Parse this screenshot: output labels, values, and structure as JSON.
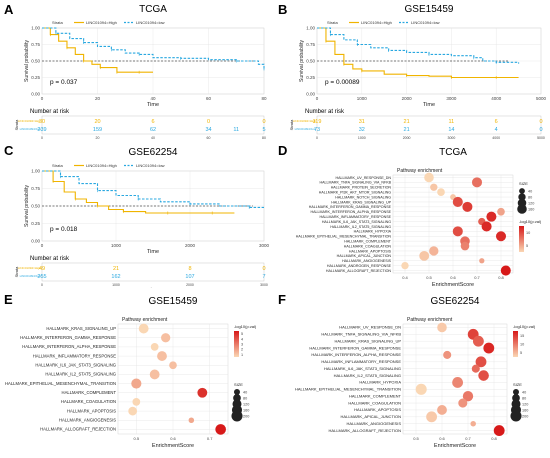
{
  "colors": {
    "high": "#f0b400",
    "low": "#29a8e0",
    "grid": "#e3e3e3",
    "axis": "#555555",
    "text": "#222222"
  },
  "panels": {
    "A": {
      "letter": "A",
      "title": "TCGA",
      "strata_label": "Strata",
      "legend_high": "LINC01094=High",
      "legend_low": "LINC01094=low",
      "ylabel": "Survival probability",
      "xlabel": "Time",
      "pvalue": "p = 0.037",
      "y_ticks": [
        "1.00",
        "0.75",
        "0.50",
        "0.25",
        "0.00"
      ],
      "x_ticks": [
        "0",
        "20",
        "40",
        "60",
        "80"
      ],
      "risk_title": "Number at risk",
      "risk_row_high": "LINC01094=High",
      "risk_row_low": "LINC01094=low",
      "risk_high": [
        "30",
        "20",
        "6",
        "0",
        "0"
      ],
      "risk_low": [
        "239",
        "159",
        "62",
        "34",
        "5"
      ],
      "risk_low_extra": [
        "11"
      ],
      "risk_xlabel": "Time"
    },
    "B": {
      "letter": "B",
      "title": "GSE15459",
      "strata_label": "Strata",
      "legend_high": "LINC01094=High",
      "legend_low": "LINC01094=low",
      "ylabel": "Survival probability",
      "xlabel": "Time",
      "pvalue": "p = 0.00089",
      "y_ticks": [
        "1.00",
        "0.75",
        "0.50",
        "0.25",
        "0.00"
      ],
      "x_ticks": [
        "0",
        "1000",
        "2000",
        "3000",
        "4000",
        "5000"
      ],
      "risk_title": "Number at risk",
      "risk_row_high": "LINC01094=High",
      "risk_row_low": "LINC01094=low",
      "risk_high": [
        "119",
        "31",
        "21",
        "11",
        "6",
        "0"
      ],
      "risk_low": [
        "73",
        "32",
        "21",
        "14",
        "4",
        "0"
      ],
      "risk_xlabel": "Time"
    },
    "C": {
      "letter": "C",
      "title": "GSE62254",
      "strata_label": "Strata",
      "legend_high": "LINC01094=High",
      "legend_low": "LINC01094=low",
      "ylabel": "Survival probability",
      "xlabel": "Time",
      "pvalue": "p = 0.018",
      "y_ticks": [
        "1.00",
        "0.75",
        "0.50",
        "0.25",
        "0.00"
      ],
      "x_ticks": [
        "0",
        "1000",
        "2000",
        "3000"
      ],
      "risk_title": "Number at risk",
      "risk_row_high": "LINC01094=High",
      "risk_row_low": "LINC01094=low",
      "risk_high": [
        "49",
        "21",
        "8",
        "0"
      ],
      "risk_low": [
        "255",
        "162",
        "107",
        "7"
      ],
      "risk_xlabel": "Time"
    },
    "D": {
      "letter": "D",
      "title": "TCGA",
      "subtitle": "Pathway enrichment",
      "xlabel": "EnrichmentScore",
      "x_ticks": [
        "0.4",
        "0.5",
        "0.6",
        "0.7",
        "0.8"
      ],
      "size_title": "SIZE",
      "size_values": [
        "40",
        "80",
        "120",
        "160"
      ],
      "color_title": "-log10(p.val)",
      "color_values": [
        "5",
        "10"
      ]
    },
    "E": {
      "letter": "E",
      "title": "GSE15459",
      "subtitle": "Pathway enrichment",
      "xlabel": "EnrichmentScore",
      "x_ticks": [
        "0.5",
        "0.6",
        "0.7"
      ],
      "size_title": "SIZE",
      "size_values": [
        "40",
        "80",
        "120",
        "160",
        "200"
      ],
      "color_title": "-log10(p.val)",
      "color_values": [
        "1",
        "2",
        "3",
        "4",
        "5"
      ]
    },
    "F": {
      "letter": "F",
      "title": "GSE62254",
      "subtitle": "Pathway enrichment",
      "xlabel": "EnrichmentScore",
      "x_ticks": [
        "0.5",
        "0.6",
        "0.7",
        "0.8"
      ],
      "size_title": "SIZE",
      "size_values": [
        "40",
        "80",
        "120",
        "160",
        "200"
      ],
      "color_title": "-log10(p.val)",
      "color_values": [
        "5",
        "10",
        "15"
      ]
    }
  },
  "chart_data": [
    {
      "panel": "A",
      "type": "line",
      "title": "TCGA",
      "xlabel": "Time",
      "ylabel": "Survival probability",
      "xlim": [
        0,
        80
      ],
      "ylim": [
        0,
        1
      ],
      "series": [
        {
          "name": "LINC01094=High",
          "x": [
            0,
            3,
            6,
            9,
            12,
            15,
            18,
            21,
            24,
            27,
            30,
            35,
            40
          ],
          "y": [
            1.0,
            0.9,
            0.8,
            0.7,
            0.6,
            0.5,
            0.45,
            0.4,
            0.4,
            0.33,
            0.33,
            0.33,
            0.33
          ]
        },
        {
          "name": "LINC01094=low",
          "x": [
            0,
            5,
            10,
            15,
            20,
            25,
            30,
            35,
            40,
            50,
            60,
            70,
            78,
            80
          ],
          "y": [
            1.0,
            0.92,
            0.84,
            0.78,
            0.72,
            0.67,
            0.62,
            0.6,
            0.55,
            0.54,
            0.52,
            0.5,
            0.45,
            0.38
          ]
        }
      ]
    },
    {
      "panel": "B",
      "type": "line",
      "title": "GSE15459",
      "xlabel": "Time",
      "ylabel": "Survival probability",
      "xlim": [
        0,
        5000
      ],
      "ylim": [
        0,
        1
      ],
      "series": [
        {
          "name": "LINC01094=High",
          "x": [
            0,
            200,
            400,
            600,
            800,
            1000,
            1500,
            2000,
            2500,
            3000,
            3500,
            4000,
            4500
          ],
          "y": [
            1.0,
            0.8,
            0.6,
            0.45,
            0.38,
            0.35,
            0.3,
            0.28,
            0.27,
            0.25,
            0.25,
            0.25,
            0.25
          ]
        },
        {
          "name": "LINC01094=low",
          "x": [
            0,
            300,
            600,
            900,
            1200,
            1600,
            2000,
            2500,
            3000,
            3500,
            3700,
            4000,
            4500
          ],
          "y": [
            1.0,
            0.9,
            0.82,
            0.75,
            0.7,
            0.66,
            0.63,
            0.6,
            0.58,
            0.55,
            0.5,
            0.48,
            0.46
          ]
        }
      ]
    },
    {
      "panel": "C",
      "type": "line",
      "title": "GSE62254",
      "xlabel": "Time",
      "ylabel": "Survival probability",
      "xlim": [
        0,
        3000
      ],
      "ylim": [
        0,
        1
      ],
      "series": [
        {
          "name": "LINC01094=High",
          "x": [
            0,
            150,
            300,
            450,
            600,
            750,
            900,
            1100,
            1400,
            1700,
            2000,
            2300,
            2600
          ],
          "y": [
            1.0,
            0.85,
            0.7,
            0.6,
            0.55,
            0.5,
            0.45,
            0.42,
            0.4,
            0.4,
            0.4,
            0.4,
            0.4
          ]
        },
        {
          "name": "LINC01094=low",
          "x": [
            0,
            250,
            500,
            750,
            1000,
            1300,
            1600,
            2000,
            2400,
            2800,
            3000
          ],
          "y": [
            1.0,
            0.92,
            0.82,
            0.72,
            0.65,
            0.6,
            0.56,
            0.53,
            0.5,
            0.48,
            0.48
          ]
        }
      ]
    },
    {
      "panel": "D",
      "type": "scatter",
      "title": "TCGA",
      "xlabel": "EnrichmentScore",
      "xlim": [
        0.35,
        0.85
      ],
      "categories": [
        "HALLMARK_UV_RESPONSE_DN",
        "HALLMARK_TNFA_SIGNALING_VIA_NFKB",
        "HALLMARK_PROTEIN_SECRETION",
        "HALLMARK_PI3K_AKT_MTOR_SIGNALING",
        "HALLMARK_NOTCH_SIGNALING",
        "HALLMARK_KRAS_SIGNALING_UP",
        "HALLMARK_INTERFERON_GAMMA_RESPONSE",
        "HALLMARK_INTERFERON_ALPHA_RESPONSE",
        "HALLMARK_INFLAMMATORY_RESPONSE",
        "HALLMARK_IL6_JAK_STAT3_SIGNALING",
        "HALLMARK_IL2_STAT5_SIGNALING",
        "HALLMARK_HYPOXIA",
        "HALLMARK_EPITHELIAL_MESENCHYMAL_TRANSITION",
        "HALLMARK_COMPLEMENT",
        "HALLMARK_COAGULATION",
        "HALLMARK_APOPTOSIS",
        "HALLMARK_APICAL_JUNCTION",
        "HALLMARK_ANGIOGENESIS",
        "HALLMARK_ANDROGEN_RESPONSE",
        "HALLMARK_ALLOGRAFT_REJECTION"
      ],
      "points": [
        {
          "x": 0.5,
          "size": 160,
          "p": 2
        },
        {
          "x": 0.7,
          "size": 180,
          "p": 8
        },
        {
          "x": 0.52,
          "size": 80,
          "p": 3
        },
        {
          "x": 0.55,
          "size": 90,
          "p": 2
        },
        {
          "x": 0.6,
          "size": 40,
          "p": 3
        },
        {
          "x": 0.62,
          "size": 180,
          "p": 10
        },
        {
          "x": 0.66,
          "size": 180,
          "p": 11
        },
        {
          "x": 0.8,
          "size": 90,
          "p": 5
        },
        {
          "x": 0.76,
          "size": 180,
          "p": 12
        },
        {
          "x": 0.72,
          "size": 80,
          "p": 9
        },
        {
          "x": 0.74,
          "size": 180,
          "p": 12
        },
        {
          "x": 0.62,
          "size": 180,
          "p": 10
        },
        {
          "x": 0.8,
          "size": 180,
          "p": 12
        },
        {
          "x": 0.65,
          "size": 160,
          "p": 8
        },
        {
          "x": 0.65,
          "size": 120,
          "p": 7
        },
        {
          "x": 0.52,
          "size": 150,
          "p": 4
        },
        {
          "x": 0.48,
          "size": 170,
          "p": 3
        },
        {
          "x": 0.72,
          "size": 30,
          "p": 5
        },
        {
          "x": 0.4,
          "size": 80,
          "p": 2
        },
        {
          "x": 0.82,
          "size": 180,
          "p": 13
        }
      ]
    },
    {
      "panel": "E",
      "type": "scatter",
      "title": "GSE15459",
      "xlabel": "EnrichmentScore",
      "xlim": [
        0.45,
        0.75
      ],
      "categories": [
        "HALLMARK_KRAS_SIGNALING_UP",
        "HALLMARK_INTERFERON_GAMMA_RESPONSE",
        "HALLMARK_INTERFERON_ALPHA_RESPONSE",
        "HALLMARK_INFLAMMATORY_RESPONSE",
        "HALLMARK_IL6_JAK_STAT3_SIGNALING",
        "HALLMARK_IL2_STAT5_SIGNALING",
        "HALLMARK_EPITHELIAL_MESENCHYMAL_TRANSITION",
        "HALLMARK_COMPLEMENT",
        "HALLMARK_COAGULATION",
        "HALLMARK_APOPTOSIS",
        "HALLMARK_ANGIOGENESIS",
        "HALLMARK_ALLOGRAFT_REJECTION"
      ],
      "points": [
        {
          "x": 0.52,
          "size": 150,
          "p": 1.5
        },
        {
          "x": 0.58,
          "size": 130,
          "p": 2
        },
        {
          "x": 0.55,
          "size": 80,
          "p": 1.5
        },
        {
          "x": 0.57,
          "size": 150,
          "p": 2
        },
        {
          "x": 0.6,
          "size": 80,
          "p": 2
        },
        {
          "x": 0.55,
          "size": 150,
          "p": 2
        },
        {
          "x": 0.5,
          "size": 160,
          "p": 2.5
        },
        {
          "x": 0.68,
          "size": 150,
          "p": 5
        },
        {
          "x": 0.5,
          "size": 80,
          "p": 1.5
        },
        {
          "x": 0.49,
          "size": 110,
          "p": 1.5
        },
        {
          "x": 0.65,
          "size": 30,
          "p": 2.5
        },
        {
          "x": 0.73,
          "size": 180,
          "p": 5.5
        }
      ]
    },
    {
      "panel": "F",
      "type": "scatter",
      "title": "GSE62254",
      "xlabel": "EnrichmentScore",
      "xlim": [
        0.45,
        0.85
      ],
      "categories": [
        "HALLMARK_UV_RESPONSE_DN",
        "HALLMARK_TNFA_SIGNALING_VIA_NFKB",
        "HALLMARK_KRAS_SIGNALING_UP",
        "HALLMARK_INTERFERON_GAMMA_RESPONSE",
        "HALLMARK_INTERFERON_ALPHA_RESPONSE",
        "HALLMARK_INFLAMMATORY_RESPONSE",
        "HALLMARK_IL6_JAK_STAT3_SIGNALING",
        "HALLMARK_IL2_STAT5_SIGNALING",
        "HALLMARK_HYPOXIA",
        "HALLMARK_EPITHELIAL_MESENCHYMAL_TRANSITION",
        "HALLMARK_COMPLEMENT",
        "HALLMARK_COAGULATION",
        "HALLMARK_APOPTOSIS",
        "HALLMARK_APICAL_JUNCTION",
        "HALLMARK_ANGIOGENESIS",
        "HALLMARK_ALLOGRAFT_REJECTION"
      ],
      "points": [
        {
          "x": 0.6,
          "size": 140,
          "p": 4
        },
        {
          "x": 0.72,
          "size": 190,
          "p": 14
        },
        {
          "x": 0.74,
          "size": 190,
          "p": 12
        },
        {
          "x": 0.78,
          "size": 190,
          "p": 16
        },
        {
          "x": 0.62,
          "size": 90,
          "p": 8
        },
        {
          "x": 0.75,
          "size": 190,
          "p": 13
        },
        {
          "x": 0.73,
          "size": 90,
          "p": 11
        },
        {
          "x": 0.76,
          "size": 180,
          "p": 13
        },
        {
          "x": 0.66,
          "size": 190,
          "p": 9
        },
        {
          "x": 0.52,
          "size": 200,
          "p": 3
        },
        {
          "x": 0.7,
          "size": 170,
          "p": 10
        },
        {
          "x": 0.68,
          "size": 120,
          "p": 8
        },
        {
          "x": 0.6,
          "size": 150,
          "p": 6
        },
        {
          "x": 0.56,
          "size": 190,
          "p": 4
        },
        {
          "x": 0.72,
          "size": 30,
          "p": 6
        },
        {
          "x": 0.82,
          "size": 190,
          "p": 17
        }
      ]
    }
  ]
}
